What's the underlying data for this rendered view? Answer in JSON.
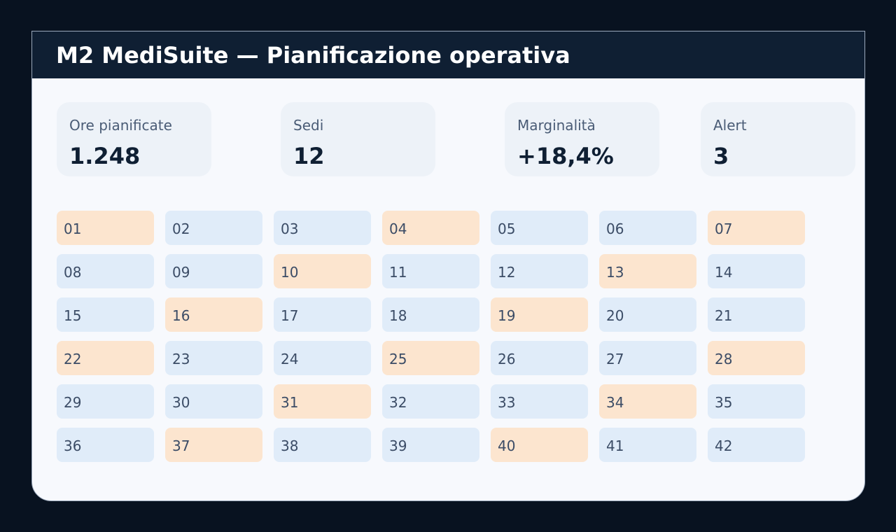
{
  "app": {
    "title": "M2 MediSuite — Pianificazione operativa"
  },
  "kpis": [
    {
      "label": "Ore pianificate",
      "value": "1.248"
    },
    {
      "label": "Sedi",
      "value": "12"
    },
    {
      "label": "Marginalità",
      "value": "+18,4%"
    },
    {
      "label": "Alert",
      "value": "3"
    }
  ],
  "colors": {
    "background": "#081220",
    "titlebar": "#0f1f33",
    "panel": "#f7f9fd",
    "card": "#edf2f8",
    "cell": "#e0ecf9",
    "cell_highlight": "#fce5cf"
  },
  "grid": {
    "cells": [
      {
        "label": "01",
        "highlight": true
      },
      {
        "label": "02",
        "highlight": false
      },
      {
        "label": "03",
        "highlight": false
      },
      {
        "label": "04",
        "highlight": true
      },
      {
        "label": "05",
        "highlight": false
      },
      {
        "label": "06",
        "highlight": false
      },
      {
        "label": "07",
        "highlight": true
      },
      {
        "label": "08",
        "highlight": false
      },
      {
        "label": "09",
        "highlight": false
      },
      {
        "label": "10",
        "highlight": true
      },
      {
        "label": "11",
        "highlight": false
      },
      {
        "label": "12",
        "highlight": false
      },
      {
        "label": "13",
        "highlight": true
      },
      {
        "label": "14",
        "highlight": false
      },
      {
        "label": "15",
        "highlight": false
      },
      {
        "label": "16",
        "highlight": true
      },
      {
        "label": "17",
        "highlight": false
      },
      {
        "label": "18",
        "highlight": false
      },
      {
        "label": "19",
        "highlight": true
      },
      {
        "label": "20",
        "highlight": false
      },
      {
        "label": "21",
        "highlight": false
      },
      {
        "label": "22",
        "highlight": true
      },
      {
        "label": "23",
        "highlight": false
      },
      {
        "label": "24",
        "highlight": false
      },
      {
        "label": "25",
        "highlight": true
      },
      {
        "label": "26",
        "highlight": false
      },
      {
        "label": "27",
        "highlight": false
      },
      {
        "label": "28",
        "highlight": true
      },
      {
        "label": "29",
        "highlight": false
      },
      {
        "label": "30",
        "highlight": false
      },
      {
        "label": "31",
        "highlight": true
      },
      {
        "label": "32",
        "highlight": false
      },
      {
        "label": "33",
        "highlight": false
      },
      {
        "label": "34",
        "highlight": true
      },
      {
        "label": "35",
        "highlight": false
      },
      {
        "label": "36",
        "highlight": false
      },
      {
        "label": "37",
        "highlight": true
      },
      {
        "label": "38",
        "highlight": false
      },
      {
        "label": "39",
        "highlight": false
      },
      {
        "label": "40",
        "highlight": true
      },
      {
        "label": "41",
        "highlight": false
      },
      {
        "label": "42",
        "highlight": false
      }
    ]
  }
}
